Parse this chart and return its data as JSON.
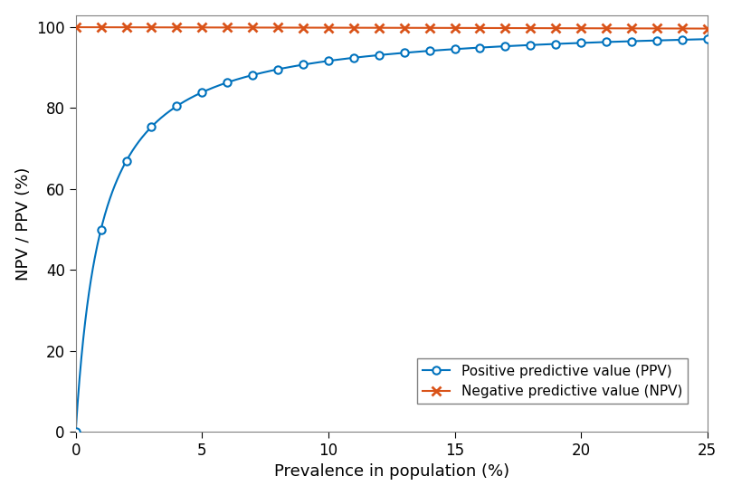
{
  "sensitivity": 0.99,
  "specificity": 0.99,
  "prevalence_range": [
    0.0,
    25.0
  ],
  "num_points": 1000,
  "marker_prevalences": [
    0,
    1,
    2,
    3,
    4,
    5,
    6,
    7,
    8,
    9,
    10,
    11,
    12,
    13,
    14,
    15,
    16,
    17,
    18,
    19,
    20,
    21,
    22,
    23,
    24,
    25
  ],
  "ppv_color": "#0072BD",
  "npv_color": "#D95319",
  "ppv_label": "Positive predictive value (PPV)",
  "npv_label": "Negative predictive value (NPV)",
  "xlabel": "Prevalence in population (%)",
  "ylabel": "NPV / PPV (%)",
  "xlim": [
    0,
    25
  ],
  "ylim": [
    0,
    103
  ],
  "xticks": [
    0,
    5,
    10,
    15,
    20,
    25
  ],
  "yticks": [
    0,
    20,
    40,
    60,
    80,
    100
  ],
  "line_width": 1.5,
  "marker_size": 6,
  "background_color": "#ffffff",
  "label_fontsize": 13,
  "tick_fontsize": 12,
  "legend_fontsize": 11,
  "spine_color": "#808080",
  "fig_width": 8.09,
  "fig_height": 5.47,
  "dpi": 100
}
